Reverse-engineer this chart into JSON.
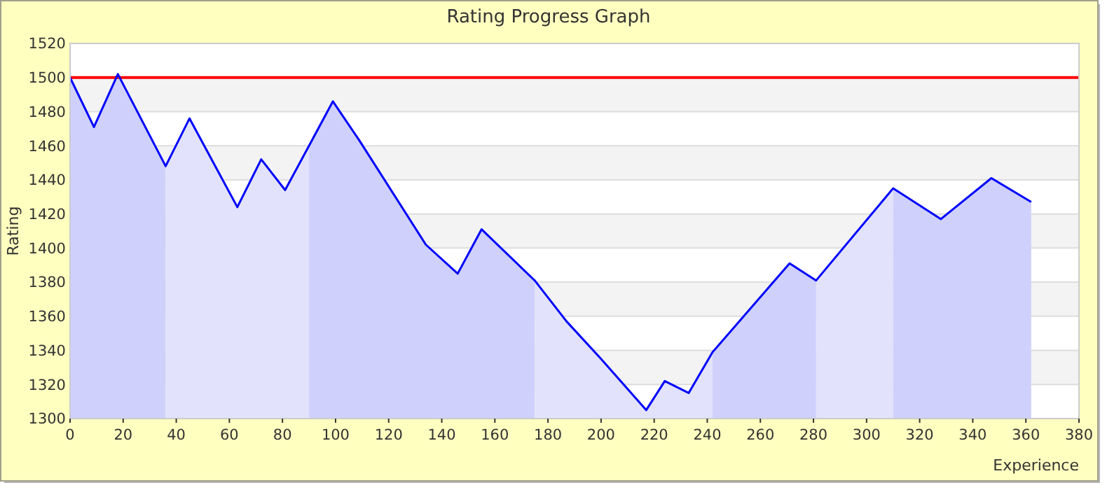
{
  "chart_data": {
    "type": "line",
    "title": "Rating Progress Graph",
    "xlabel": "Experience",
    "ylabel": "Rating",
    "xlim": [
      0,
      380
    ],
    "xticks": [
      0,
      20,
      40,
      60,
      80,
      100,
      120,
      140,
      160,
      180,
      200,
      220,
      240,
      260,
      280,
      300,
      320,
      340,
      360,
      380
    ],
    "ylim": [
      1300,
      1520
    ],
    "yticks": [
      1300,
      1320,
      1340,
      1360,
      1380,
      1400,
      1420,
      1440,
      1460,
      1480,
      1500,
      1520
    ],
    "grid": "y",
    "marker": "none",
    "line_style": "solid",
    "ref_lines": [
      {
        "axis": "y",
        "value": 1500,
        "color": "#ff0000"
      }
    ],
    "series": [
      {
        "type": "area",
        "color": "#cfd0fb",
        "x": [
          0,
          9,
          18,
          36
        ],
        "values": [
          1500,
          1471,
          1502,
          1448
        ]
      },
      {
        "type": "area",
        "color": "#e2e2fc",
        "x": [
          36,
          45,
          63,
          72,
          81,
          90
        ],
        "values": [
          1448,
          1476,
          1424,
          1452,
          1434,
          1460
        ]
      },
      {
        "type": "area",
        "color": "#cfd0fb",
        "x": [
          90,
          99,
          109,
          134,
          146,
          155,
          175
        ],
        "values": [
          1460,
          1486,
          1463,
          1402,
          1385,
          1411,
          1381
        ]
      },
      {
        "type": "area",
        "color": "#e2e2fc",
        "x": [
          175,
          187,
          200,
          217,
          224,
          233,
          242
        ],
        "values": [
          1381,
          1357,
          1335,
          1305,
          1322,
          1315,
          1339
        ]
      },
      {
        "type": "area",
        "color": "#cfd0fb",
        "x": [
          242,
          271,
          281
        ],
        "values": [
          1339,
          1391,
          1381
        ]
      },
      {
        "type": "area",
        "color": "#e2e2fc",
        "x": [
          281,
          310
        ],
        "values": [
          1381,
          1435
        ]
      },
      {
        "type": "area",
        "color": "#cfd0fb",
        "x": [
          310,
          328,
          347,
          362
        ],
        "values": [
          1435,
          1417,
          1441,
          1427
        ]
      },
      {
        "type": "line",
        "color": "#0000ff",
        "x": [
          0,
          9,
          18,
          36,
          45,
          63,
          72,
          81,
          90,
          99,
          109,
          134,
          146,
          155,
          175,
          187,
          200,
          217,
          224,
          233,
          242,
          271,
          281,
          310,
          328,
          347,
          362
        ],
        "values": [
          1500,
          1471,
          1502,
          1448,
          1476,
          1424,
          1452,
          1434,
          1460,
          1486,
          1463,
          1402,
          1385,
          1411,
          1381,
          1357,
          1335,
          1305,
          1322,
          1315,
          1339,
          1391,
          1381,
          1435,
          1417,
          1441,
          1427
        ]
      }
    ]
  }
}
